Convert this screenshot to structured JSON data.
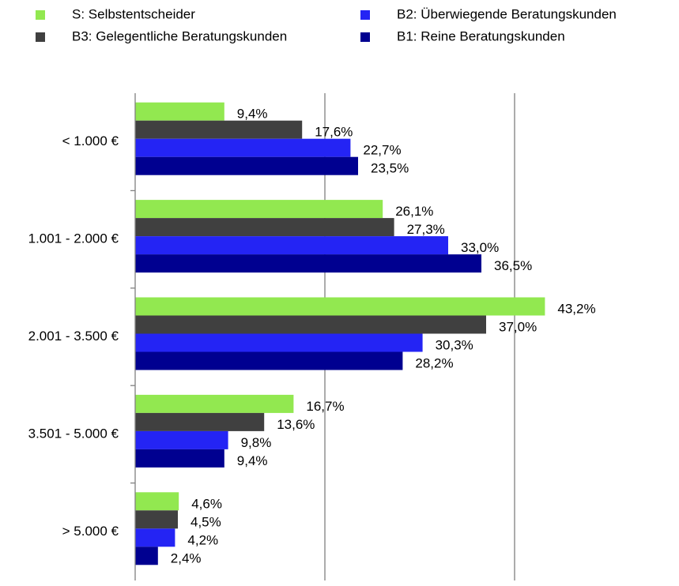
{
  "chart_data": {
    "type": "hbar",
    "categories": [
      "< 1.000 €",
      "1.001 - 2.000 €",
      "2.001 - 3.500 €",
      "3.501 - 5.000 €",
      "> 5.000 €"
    ],
    "series": [
      {
        "name": "S: Selbstentscheider",
        "color": "#92e850",
        "values": [
          9.4,
          26.1,
          43.2,
          16.7,
          4.6
        ],
        "value_labels": [
          "9,4%",
          "26,1%",
          "43,2%",
          "16,7%",
          "4,6%"
        ]
      },
      {
        "name": "B3: Gelegentliche Beratungskunden",
        "color": "#404040",
        "values": [
          17.6,
          27.3,
          37.0,
          13.6,
          4.5
        ],
        "value_labels": [
          "17,6%",
          "27,3%",
          "37,0%",
          "13,6%",
          "4,5%"
        ]
      },
      {
        "name": "B2: Überwiegende Beratungskunden",
        "color": "#2424f4",
        "values": [
          22.7,
          33.0,
          30.3,
          9.8,
          4.2
        ],
        "value_labels": [
          "22,7%",
          "33,0%",
          "30,3%",
          "9,8%",
          "4,2%"
        ]
      },
      {
        "name": "B1: Reine Beratungskunden",
        "color": "#000090",
        "values": [
          23.5,
          36.5,
          28.2,
          9.4,
          2.4
        ],
        "value_labels": [
          "23,5%",
          "36,5%",
          "28,2%",
          "9,4%",
          "2,4%"
        ]
      }
    ],
    "xlim": [
      0,
      50
    ],
    "xticks": [
      0,
      20,
      40
    ],
    "grid": true
  }
}
